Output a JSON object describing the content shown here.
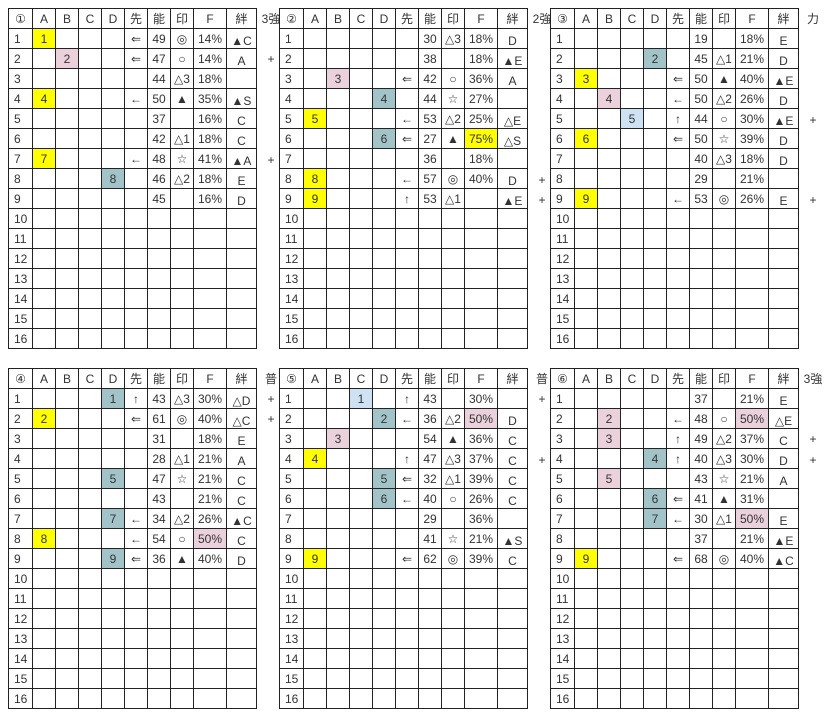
{
  "colors": {
    "yellow": "#ffff00",
    "pink": "#ead1dc",
    "teal": "#a2c4c9",
    "lightblue": "#cfe2f3"
  },
  "columns": [
    "A",
    "B",
    "C",
    "D",
    "先",
    "能",
    "印",
    "F",
    "絆"
  ],
  "row_numbers": [
    "1",
    "2",
    "3",
    "4",
    "5",
    "6",
    "7",
    "8",
    "9",
    "10",
    "11",
    "12",
    "13",
    "14",
    "15",
    "16"
  ],
  "tables": [
    {
      "label": "①",
      "extra_header": "3強",
      "rows": [
        {
          "cells": [
            "1",
            "",
            "",
            "",
            "⇐",
            "49",
            "◎",
            "14%",
            "▲C"
          ],
          "extra": "",
          "hl": {
            "A": "yellow"
          }
        },
        {
          "cells": [
            "",
            "2",
            "",
            "",
            "⇐",
            "47",
            "○",
            "14%",
            "A"
          ],
          "extra": "+",
          "hl": {
            "B": "pink"
          }
        },
        {
          "cells": [
            "",
            "",
            "",
            "",
            "",
            "44",
            "△3",
            "18%",
            ""
          ],
          "extra": "",
          "hl": {}
        },
        {
          "cells": [
            "4",
            "",
            "",
            "",
            "←",
            "50",
            "▲",
            "35%",
            "▲S"
          ],
          "extra": "",
          "hl": {
            "A": "yellow"
          }
        },
        {
          "cells": [
            "",
            "",
            "",
            "",
            "",
            "37",
            "",
            "16%",
            "C"
          ],
          "extra": "",
          "hl": {}
        },
        {
          "cells": [
            "",
            "",
            "",
            "",
            "",
            "42",
            "△1",
            "18%",
            "C"
          ],
          "extra": "",
          "hl": {}
        },
        {
          "cells": [
            "7",
            "",
            "",
            "",
            "←",
            "48",
            "☆",
            "41%",
            "▲A"
          ],
          "extra": "+",
          "hl": {
            "A": "yellow"
          }
        },
        {
          "cells": [
            "",
            "",
            "",
            "8",
            "",
            "46",
            "△2",
            "18%",
            "E"
          ],
          "extra": "",
          "hl": {
            "D": "teal"
          }
        },
        {
          "cells": [
            "",
            "",
            "",
            "",
            "",
            "45",
            "",
            "16%",
            "D"
          ],
          "extra": "",
          "hl": {}
        }
      ]
    },
    {
      "label": "②",
      "extra_header": "2強",
      "rows": [
        {
          "cells": [
            "",
            "",
            "",
            "",
            "",
            "30",
            "△3",
            "18%",
            "D"
          ],
          "extra": "",
          "hl": {}
        },
        {
          "cells": [
            "",
            "",
            "",
            "",
            "",
            "38",
            "",
            "18%",
            "▲E"
          ],
          "extra": "",
          "hl": {}
        },
        {
          "cells": [
            "",
            "3",
            "",
            "",
            "⇐",
            "42",
            "○",
            "36%",
            "A"
          ],
          "extra": "",
          "hl": {
            "B": "pink"
          }
        },
        {
          "cells": [
            "",
            "",
            "",
            "4",
            "",
            "44",
            "☆",
            "27%",
            ""
          ],
          "extra": "",
          "hl": {
            "D": "teal"
          }
        },
        {
          "cells": [
            "5",
            "",
            "",
            "",
            "←",
            "53",
            "△2",
            "25%",
            "△E"
          ],
          "extra": "",
          "hl": {
            "A": "yellow"
          }
        },
        {
          "cells": [
            "",
            "",
            "",
            "6",
            "⇐",
            "27",
            "▲",
            "75%",
            "△S"
          ],
          "extra": "",
          "hl": {
            "D": "teal",
            "F": "yellow"
          }
        },
        {
          "cells": [
            "",
            "",
            "",
            "",
            "",
            "36",
            "",
            "18%",
            ""
          ],
          "extra": "",
          "hl": {}
        },
        {
          "cells": [
            "8",
            "",
            "",
            "",
            "←",
            "57",
            "◎",
            "40%",
            "D"
          ],
          "extra": "+",
          "hl": {
            "A": "yellow"
          }
        },
        {
          "cells": [
            "9",
            "",
            "",
            "",
            "↑",
            "53",
            "△1",
            "",
            "▲E"
          ],
          "extra": "+",
          "hl": {
            "A": "yellow"
          }
        }
      ]
    },
    {
      "label": "③",
      "extra_header": "力",
      "rows": [
        {
          "cells": [
            "",
            "",
            "",
            "",
            "",
            "19",
            "",
            "18%",
            "E"
          ],
          "extra": "",
          "hl": {}
        },
        {
          "cells": [
            "",
            "",
            "",
            "2",
            "",
            "45",
            "△1",
            "21%",
            "D"
          ],
          "extra": "",
          "hl": {
            "D": "teal"
          }
        },
        {
          "cells": [
            "3",
            "",
            "",
            "",
            "⇐",
            "50",
            "▲",
            "40%",
            "▲E"
          ],
          "extra": "",
          "hl": {
            "A": "yellow"
          }
        },
        {
          "cells": [
            "",
            "4",
            "",
            "",
            "←",
            "50",
            "△2",
            "26%",
            "D"
          ],
          "extra": "",
          "hl": {
            "B": "pink"
          }
        },
        {
          "cells": [
            "",
            "",
            "5",
            "",
            "↑",
            "44",
            "○",
            "30%",
            "▲E"
          ],
          "extra": "+",
          "hl": {
            "C": "lightblue"
          }
        },
        {
          "cells": [
            "6",
            "",
            "",
            "",
            "⇐",
            "50",
            "☆",
            "39%",
            "D"
          ],
          "extra": "",
          "hl": {
            "A": "yellow"
          }
        },
        {
          "cells": [
            "",
            "",
            "",
            "",
            "",
            "40",
            "△3",
            "18%",
            "D"
          ],
          "extra": "",
          "hl": {}
        },
        {
          "cells": [
            "",
            "",
            "",
            "",
            "",
            "29",
            "",
            "21%",
            ""
          ],
          "extra": "",
          "hl": {}
        },
        {
          "cells": [
            "9",
            "",
            "",
            "",
            "←",
            "53",
            "◎",
            "26%",
            "E"
          ],
          "extra": "+",
          "hl": {
            "A": "yellow"
          }
        }
      ]
    },
    {
      "label": "④",
      "extra_header": "普",
      "rows": [
        {
          "cells": [
            "",
            "",
            "",
            "1",
            "↑",
            "43",
            "△3",
            "30%",
            "△D"
          ],
          "extra": "+",
          "hl": {
            "D": "teal"
          }
        },
        {
          "cells": [
            "2",
            "",
            "",
            "",
            "⇐",
            "61",
            "◎",
            "40%",
            "△C"
          ],
          "extra": "+",
          "hl": {
            "A": "yellow"
          }
        },
        {
          "cells": [
            "",
            "",
            "",
            "",
            "",
            "31",
            "",
            "18%",
            "E"
          ],
          "extra": "",
          "hl": {}
        },
        {
          "cells": [
            "",
            "",
            "",
            "",
            "",
            "28",
            "△1",
            "21%",
            "A"
          ],
          "extra": "",
          "hl": {}
        },
        {
          "cells": [
            "",
            "",
            "",
            "5",
            "",
            "47",
            "☆",
            "21%",
            "C"
          ],
          "extra": "",
          "hl": {
            "D": "teal"
          }
        },
        {
          "cells": [
            "",
            "",
            "",
            "",
            "",
            "43",
            "",
            "21%",
            "C"
          ],
          "extra": "",
          "hl": {}
        },
        {
          "cells": [
            "",
            "",
            "",
            "7",
            "←",
            "34",
            "△2",
            "26%",
            "▲C"
          ],
          "extra": "",
          "hl": {
            "D": "teal"
          }
        },
        {
          "cells": [
            "8",
            "",
            "",
            "",
            "←",
            "54",
            "○",
            "50%",
            "C"
          ],
          "extra": "",
          "hl": {
            "A": "yellow",
            "F": "pink"
          }
        },
        {
          "cells": [
            "",
            "",
            "",
            "9",
            "⇐",
            "36",
            "▲",
            "40%",
            "D"
          ],
          "extra": "",
          "hl": {
            "D": "teal"
          }
        }
      ]
    },
    {
      "label": "⑤",
      "extra_header": "普",
      "rows": [
        {
          "cells": [
            "",
            "",
            "1",
            "",
            "↑",
            "43",
            "",
            "30%",
            ""
          ],
          "extra": "+",
          "hl": {
            "C": "lightblue"
          }
        },
        {
          "cells": [
            "",
            "",
            "",
            "2",
            "←",
            "36",
            "△2",
            "50%",
            "D"
          ],
          "extra": "",
          "hl": {
            "D": "teal",
            "F": "pink"
          }
        },
        {
          "cells": [
            "",
            "3",
            "",
            "",
            "",
            "54",
            "▲",
            "36%",
            "C"
          ],
          "extra": "",
          "hl": {
            "B": "pink"
          }
        },
        {
          "cells": [
            "4",
            "",
            "",
            "",
            "↑",
            "47",
            "△3",
            "37%",
            "C"
          ],
          "extra": "+",
          "hl": {
            "A": "yellow"
          }
        },
        {
          "cells": [
            "",
            "",
            "",
            "5",
            "⇐",
            "32",
            "△1",
            "39%",
            "C"
          ],
          "extra": "",
          "hl": {
            "D": "teal"
          }
        },
        {
          "cells": [
            "",
            "",
            "",
            "6",
            "←",
            "40",
            "○",
            "26%",
            "C"
          ],
          "extra": "",
          "hl": {
            "D": "teal"
          }
        },
        {
          "cells": [
            "",
            "",
            "",
            "",
            "",
            "29",
            "",
            "36%",
            ""
          ],
          "extra": "",
          "hl": {}
        },
        {
          "cells": [
            "",
            "",
            "",
            "",
            "",
            "41",
            "☆",
            "21%",
            "▲S"
          ],
          "extra": "",
          "hl": {}
        },
        {
          "cells": [
            "9",
            "",
            "",
            "",
            "⇐",
            "62",
            "◎",
            "39%",
            "C"
          ],
          "extra": "",
          "hl": {
            "A": "yellow"
          }
        }
      ]
    },
    {
      "label": "⑥",
      "extra_header": "3強",
      "rows": [
        {
          "cells": [
            "",
            "",
            "",
            "",
            "",
            "37",
            "",
            "21%",
            "E"
          ],
          "extra": "",
          "hl": {}
        },
        {
          "cells": [
            "",
            "2",
            "",
            "",
            "←",
            "48",
            "○",
            "50%",
            "△E"
          ],
          "extra": "",
          "hl": {
            "B": "pink",
            "F": "pink"
          }
        },
        {
          "cells": [
            "",
            "3",
            "",
            "",
            "↑",
            "49",
            "△2",
            "37%",
            "C"
          ],
          "extra": "+",
          "hl": {
            "B": "pink"
          }
        },
        {
          "cells": [
            "",
            "",
            "",
            "4",
            "↑",
            "40",
            "△3",
            "30%",
            "D"
          ],
          "extra": "+",
          "hl": {
            "D": "teal"
          }
        },
        {
          "cells": [
            "",
            "5",
            "",
            "",
            "",
            "43",
            "☆",
            "21%",
            "A"
          ],
          "extra": "",
          "hl": {
            "B": "pink"
          }
        },
        {
          "cells": [
            "",
            "",
            "",
            "6",
            "⇐",
            "41",
            "▲",
            "31%",
            ""
          ],
          "extra": "",
          "hl": {
            "D": "teal"
          }
        },
        {
          "cells": [
            "",
            "",
            "",
            "7",
            "←",
            "30",
            "△1",
            "50%",
            "E"
          ],
          "extra": "",
          "hl": {
            "D": "teal",
            "F": "pink"
          }
        },
        {
          "cells": [
            "",
            "",
            "",
            "",
            "",
            "37",
            "",
            "21%",
            "▲E"
          ],
          "extra": "",
          "hl": {}
        },
        {
          "cells": [
            "9",
            "",
            "",
            "",
            "⇐",
            "68",
            "◎",
            "40%",
            "▲C"
          ],
          "extra": "",
          "hl": {
            "A": "yellow"
          }
        }
      ]
    }
  ]
}
